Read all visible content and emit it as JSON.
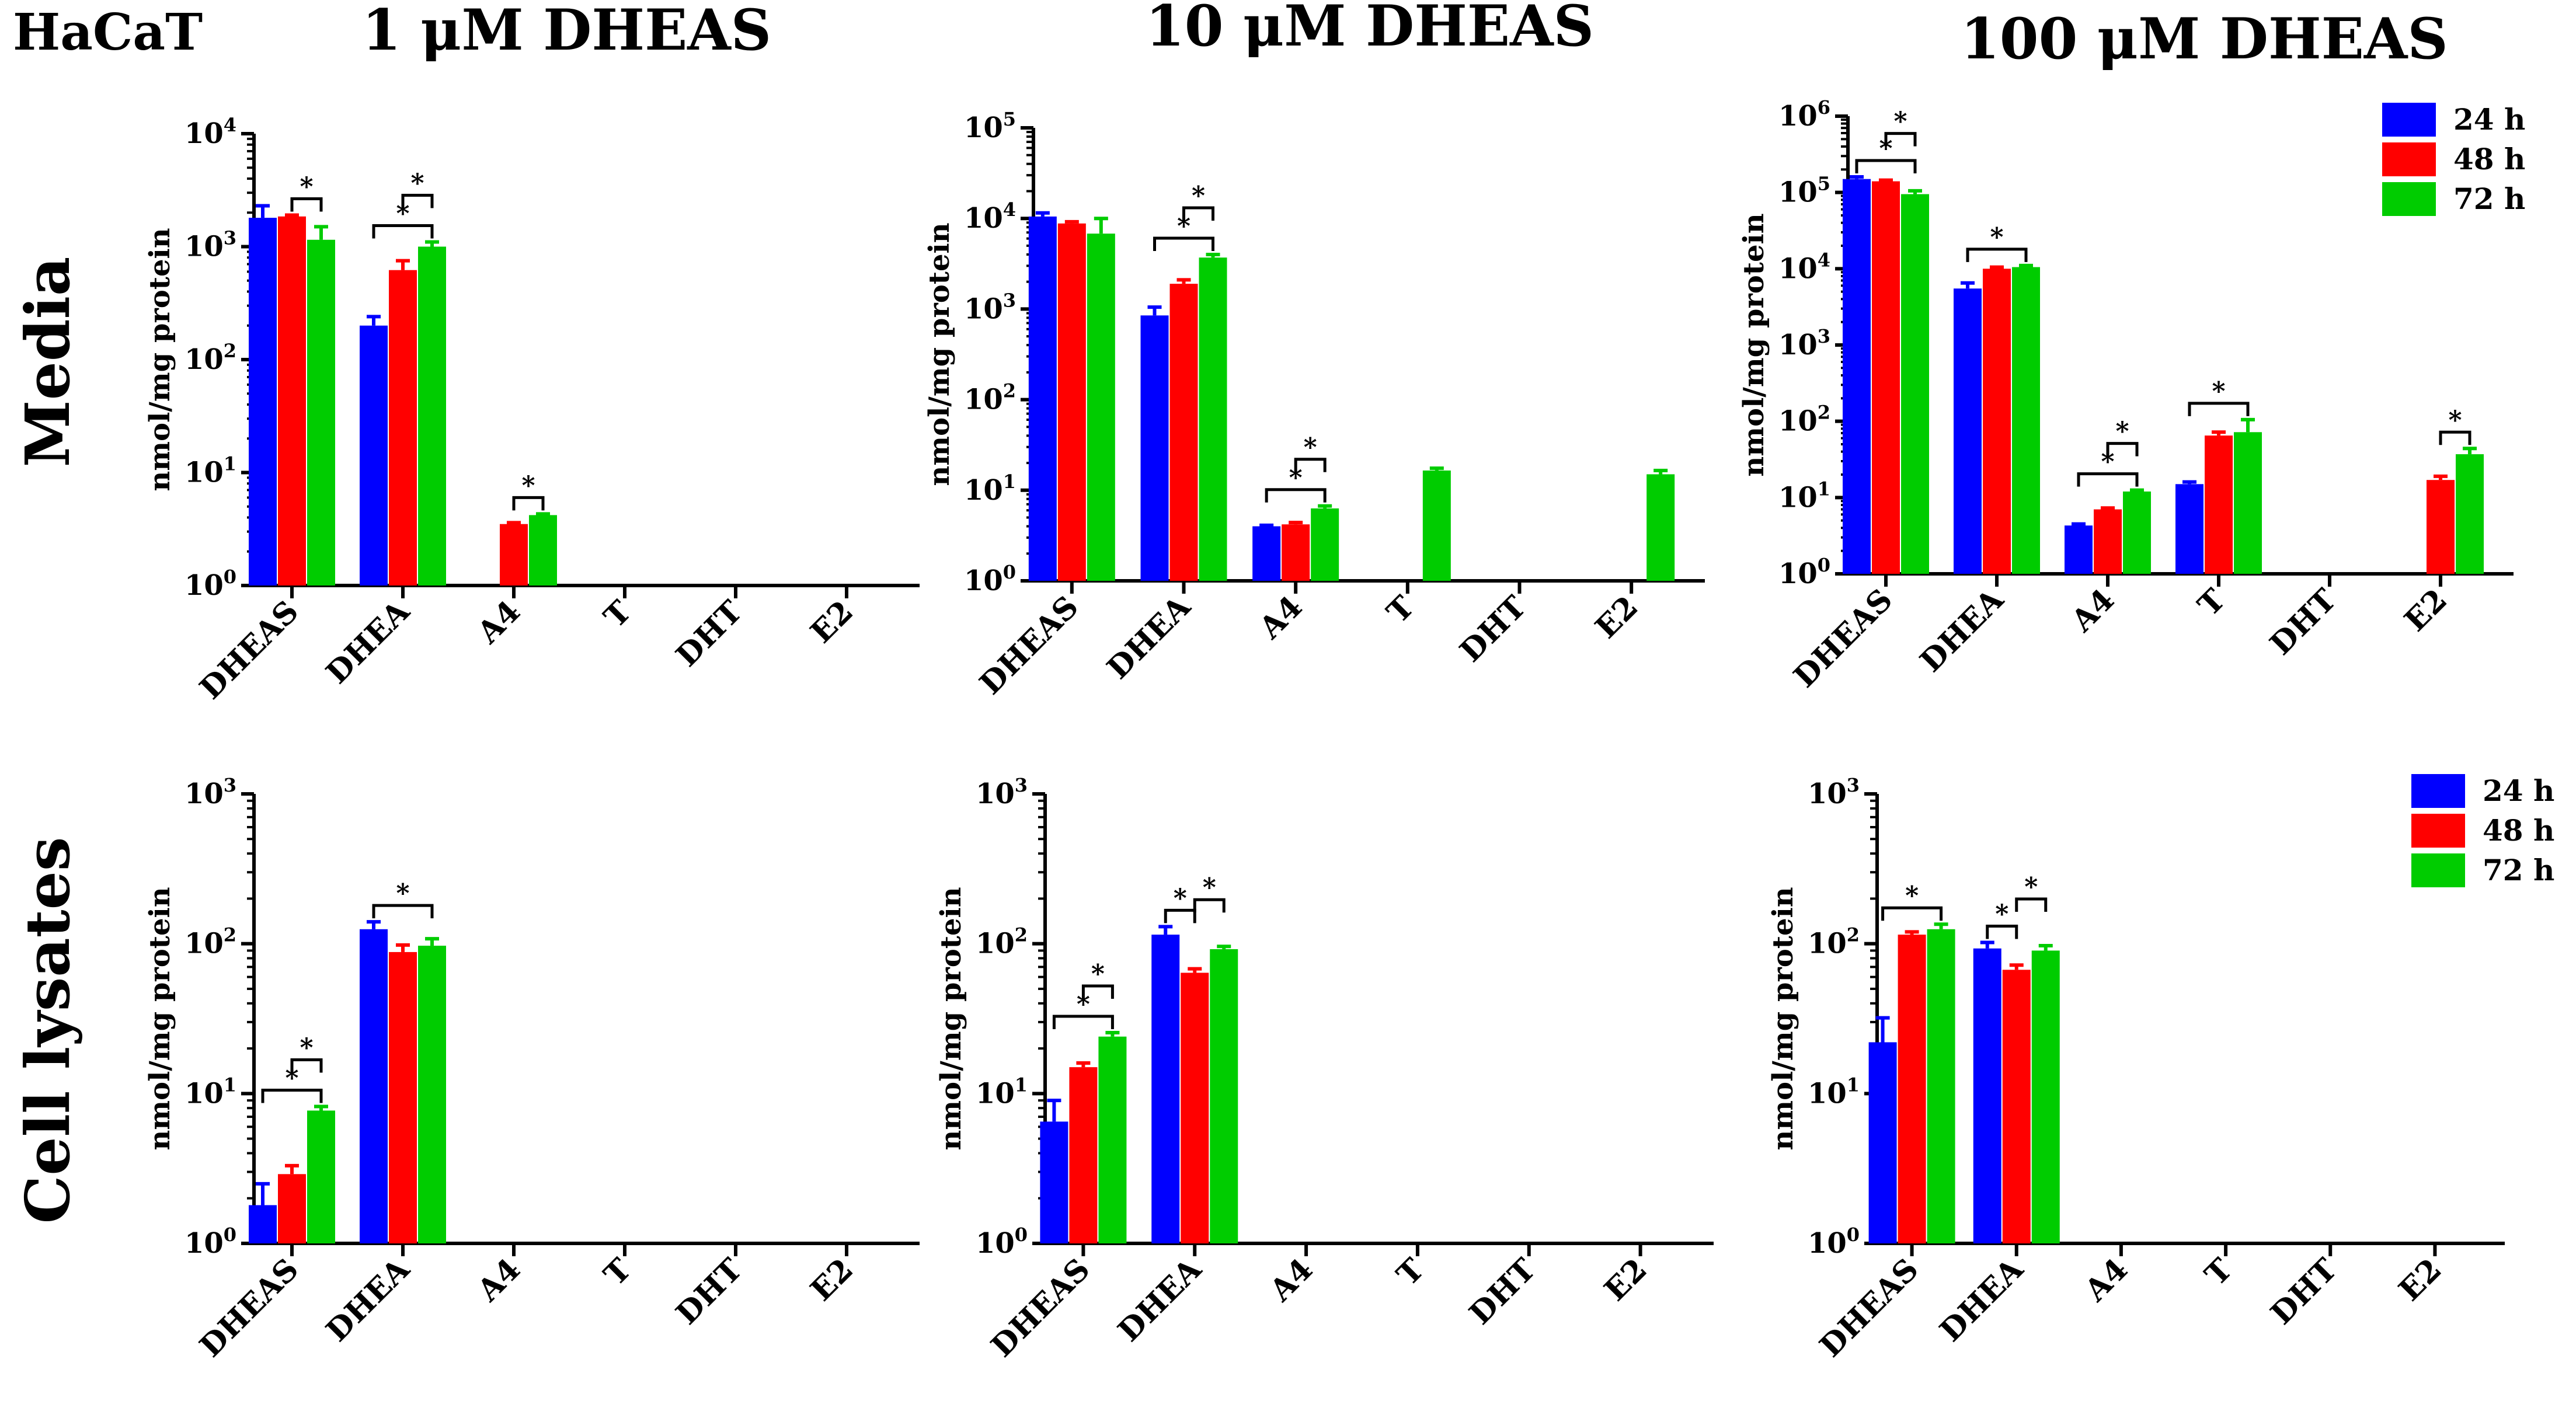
{
  "figure": {
    "cell_line": "HaCaT",
    "column_titles": [
      "1 μM  DHEAS",
      "10 μM  DHEAS",
      "100 μM  DHEAS"
    ],
    "row_titles": [
      "Media",
      "Cell lysates"
    ],
    "ylabel": "nmol/mg protein",
    "categories": [
      "DHEAS",
      "DHEA",
      "A4",
      "T",
      "DHT",
      "E2"
    ],
    "legend": [
      "24 h",
      "48 h",
      "72 h"
    ],
    "colors": {
      "24 h": "#0000ff",
      "48 h": "#ff0000",
      "72 h": "#00cc00"
    }
  },
  "chart_data": [
    {
      "type": "bar",
      "log_scale": true,
      "ylim": [
        1,
        10000
      ],
      "title": "1 μM  DHEAS",
      "row": "Media",
      "xlabel": "",
      "ylabel": "nmol/mg protein",
      "categories": [
        "DHEAS",
        "DHEA",
        "A4",
        "T",
        "DHT",
        "E2"
      ],
      "series": [
        {
          "name": "24 h",
          "values": [
            1800,
            200,
            null,
            null,
            null,
            null
          ],
          "errors": [
            2300,
            240,
            null,
            null,
            null,
            null
          ]
        },
        {
          "name": "48 h",
          "values": [
            1850,
            620,
            3.5,
            null,
            null,
            null
          ],
          "errors": [
            1900,
            750,
            3.6,
            null,
            null,
            null
          ]
        },
        {
          "name": "72 h",
          "values": [
            1150,
            1000,
            4.2,
            null,
            null,
            null
          ],
          "errors": [
            1500,
            1100,
            4.3,
            null,
            null,
            null
          ]
        }
      ],
      "significance": [
        {
          "category": "DHEAS",
          "from": "48 h",
          "to": "72 h",
          "label": "*"
        },
        {
          "category": "DHEA",
          "from": "24 h",
          "to": "72 h",
          "label": "*"
        },
        {
          "category": "DHEA",
          "from": "48 h",
          "to": "72 h",
          "label": "*"
        },
        {
          "category": "A4",
          "from": "48 h",
          "to": "72 h",
          "label": "*"
        }
      ]
    },
    {
      "type": "bar",
      "log_scale": true,
      "ylim": [
        1,
        100000
      ],
      "title": "10 μM  DHEAS",
      "row": "Media",
      "xlabel": "",
      "ylabel": "nmol/mg protein",
      "categories": [
        "DHEAS",
        "DHEA",
        "A4",
        "T",
        "DHT",
        "E2"
      ],
      "series": [
        {
          "name": "24 h",
          "values": [
            10500,
            850,
            4.0,
            null,
            null,
            null
          ],
          "errors": [
            11500,
            1050,
            4.1,
            null,
            null,
            null
          ]
        },
        {
          "name": "48 h",
          "values": [
            8800,
            1900,
            4.2,
            null,
            null,
            null
          ],
          "errors": [
            9200,
            2100,
            4.4,
            null,
            null,
            null
          ]
        },
        {
          "name": "72 h",
          "values": [
            6800,
            3700,
            6.3,
            16.5,
            null,
            15
          ],
          "errors": [
            10000,
            4000,
            6.7,
            17.5,
            null,
            16.5
          ]
        }
      ],
      "significance": [
        {
          "category": "DHEA",
          "from": "24 h",
          "to": "72 h",
          "label": "*"
        },
        {
          "category": "DHEA",
          "from": "48 h",
          "to": "72 h",
          "label": "*"
        },
        {
          "category": "A4",
          "from": "24 h",
          "to": "72 h",
          "label": "*"
        },
        {
          "category": "A4",
          "from": "48 h",
          "to": "72 h",
          "label": "*"
        }
      ]
    },
    {
      "type": "bar",
      "log_scale": true,
      "ylim": [
        1,
        1000000
      ],
      "title": "100 μM  DHEAS",
      "row": "Media",
      "xlabel": "",
      "ylabel": "nmol/mg protein",
      "categories": [
        "DHEAS",
        "DHEA",
        "A4",
        "T",
        "DHT",
        "E2"
      ],
      "series": [
        {
          "name": "24 h",
          "values": [
            150000,
            5500,
            4.3,
            15,
            null,
            null
          ],
          "errors": [
            160000,
            6500,
            4.5,
            16,
            null,
            null
          ]
        },
        {
          "name": "48 h",
          "values": [
            140000,
            10000,
            7.0,
            65,
            null,
            17
          ],
          "errors": [
            145000,
            10500,
            7.3,
            72,
            null,
            19
          ]
        },
        {
          "name": "72 h",
          "values": [
            95000,
            10500,
            12,
            72,
            null,
            37
          ],
          "errors": [
            105000,
            11000,
            12.5,
            105,
            null,
            44
          ]
        }
      ],
      "significance": [
        {
          "category": "DHEAS",
          "from": "24 h",
          "to": "72 h",
          "label": "*"
        },
        {
          "category": "DHEAS",
          "from": "48 h",
          "to": "72 h",
          "label": "*"
        },
        {
          "category": "DHEA",
          "from": "24 h",
          "to": "72 h",
          "label": "*"
        },
        {
          "category": "A4",
          "from": "24 h",
          "to": "72 h",
          "label": "*"
        },
        {
          "category": "A4",
          "from": "48 h",
          "to": "72 h",
          "label": "*"
        },
        {
          "category": "T",
          "from": "24 h",
          "to": "72 h",
          "label": "*"
        },
        {
          "category": "E2",
          "from": "48 h",
          "to": "72 h",
          "label": "*"
        }
      ]
    },
    {
      "type": "bar",
      "log_scale": true,
      "ylim": [
        1,
        1000
      ],
      "title": "1 μM  DHEAS",
      "row": "Cell lysates",
      "xlabel": "",
      "ylabel": "nmol/mg protein",
      "categories": [
        "DHEAS",
        "DHEA",
        "A4",
        "T",
        "DHT",
        "E2"
      ],
      "series": [
        {
          "name": "24 h",
          "values": [
            1.8,
            125,
            null,
            null,
            null,
            null
          ],
          "errors": [
            2.5,
            140,
            null,
            null,
            null,
            null
          ]
        },
        {
          "name": "48 h",
          "values": [
            2.9,
            88,
            null,
            null,
            null,
            null
          ],
          "errors": [
            3.3,
            98,
            null,
            null,
            null,
            null
          ]
        },
        {
          "name": "72 h",
          "values": [
            7.7,
            97,
            null,
            null,
            null,
            null
          ],
          "errors": [
            8.2,
            108,
            null,
            null,
            null,
            null
          ]
        }
      ],
      "significance": [
        {
          "category": "DHEAS",
          "from": "24 h",
          "to": "72 h",
          "label": "*"
        },
        {
          "category": "DHEAS",
          "from": "48 h",
          "to": "72 h",
          "label": "*"
        },
        {
          "category": "DHEA",
          "from": "24 h",
          "to": "72 h",
          "label": "*"
        }
      ]
    },
    {
      "type": "bar",
      "log_scale": true,
      "ylim": [
        1,
        1000
      ],
      "title": "10 μM  DHEAS",
      "row": "Cell lysates",
      "xlabel": "",
      "ylabel": "nmol/mg protein",
      "categories": [
        "DHEAS",
        "DHEA",
        "A4",
        "T",
        "DHT",
        "E2"
      ],
      "series": [
        {
          "name": "24 h",
          "values": [
            6.5,
            115,
            null,
            null,
            null,
            null
          ],
          "errors": [
            9.0,
            130,
            null,
            null,
            null,
            null
          ]
        },
        {
          "name": "48 h",
          "values": [
            15,
            64,
            null,
            null,
            null,
            null
          ],
          "errors": [
            16,
            68,
            null,
            null,
            null,
            null
          ]
        },
        {
          "name": "72 h",
          "values": [
            24,
            92,
            null,
            null,
            null,
            null
          ],
          "errors": [
            25.5,
            96,
            null,
            null,
            null,
            null
          ]
        }
      ],
      "significance": [
        {
          "category": "DHEAS",
          "from": "24 h",
          "to": "72 h",
          "label": "*"
        },
        {
          "category": "DHEAS",
          "from": "48 h",
          "to": "72 h",
          "label": "*"
        },
        {
          "category": "DHEA",
          "from": "24 h",
          "to": "48 h",
          "label": "*"
        },
        {
          "category": "DHEA",
          "from": "48 h",
          "to": "72 h",
          "label": "*"
        }
      ]
    },
    {
      "type": "bar",
      "log_scale": true,
      "ylim": [
        1,
        1000
      ],
      "title": "100 μM  DHEAS",
      "row": "Cell lysates",
      "xlabel": "",
      "ylabel": "nmol/mg protein",
      "categories": [
        "DHEAS",
        "DHEA",
        "A4",
        "T",
        "DHT",
        "E2"
      ],
      "series": [
        {
          "name": "24 h",
          "values": [
            22,
            93,
            null,
            null,
            null,
            null
          ],
          "errors": [
            32,
            102,
            null,
            null,
            null,
            null
          ]
        },
        {
          "name": "48 h",
          "values": [
            115,
            67,
            null,
            null,
            null,
            null
          ],
          "errors": [
            120,
            72,
            null,
            null,
            null,
            null
          ]
        },
        {
          "name": "72 h",
          "values": [
            125,
            90,
            null,
            null,
            null,
            null
          ],
          "errors": [
            135,
            97,
            null,
            null,
            null,
            null
          ]
        }
      ],
      "significance": [
        {
          "category": "DHEAS",
          "from": "24 h",
          "to": "72 h",
          "label": "*"
        },
        {
          "category": "DHEA",
          "from": "24 h",
          "to": "48 h",
          "label": "*"
        },
        {
          "category": "DHEA",
          "from": "48 h",
          "to": "72 h",
          "label": "*"
        }
      ]
    }
  ]
}
